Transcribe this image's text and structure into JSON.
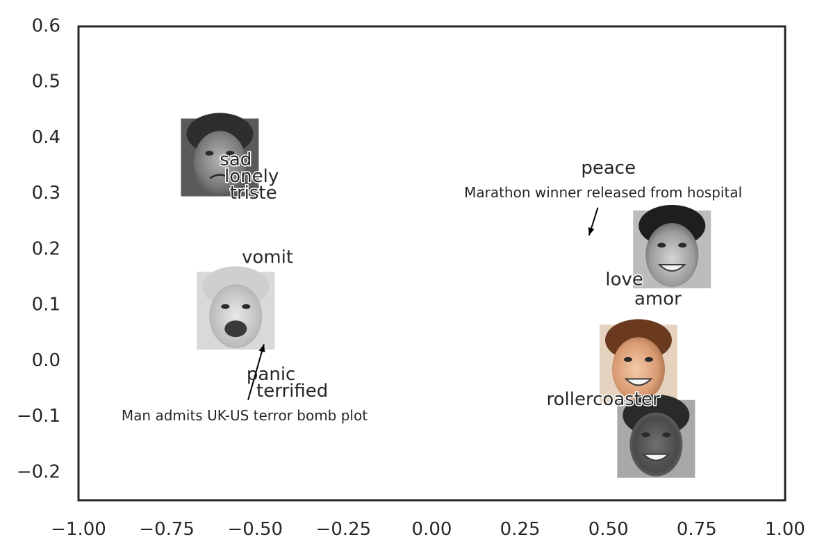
{
  "chart_data": {
    "type": "scatter",
    "title": "",
    "xlabel": "",
    "ylabel": "",
    "xlim": [
      -1.0,
      1.0
    ],
    "ylim": [
      -0.25,
      0.6
    ],
    "x_ticks": [
      -1.0,
      -0.75,
      -0.5,
      -0.25,
      0.0,
      0.25,
      0.5,
      0.75,
      1.0
    ],
    "x_tick_labels": [
      "−1.00",
      "−0.75",
      "−0.50",
      "−0.25",
      "0.00",
      "0.25",
      "0.50",
      "0.75",
      "1.00"
    ],
    "y_ticks": [
      -0.2,
      -0.1,
      0.0,
      0.1,
      0.2,
      0.3,
      0.4,
      0.5,
      0.6
    ],
    "y_tick_labels": [
      "−0.2",
      "−0.1",
      "0.0",
      "0.1",
      "0.2",
      "0.3",
      "0.4",
      "0.5",
      "0.6"
    ],
    "grid": false,
    "image_points": [
      {
        "name": "face-sad-woman-image",
        "label": "sad woman face",
        "x": -0.6,
        "y": 0.365
      },
      {
        "name": "face-crying-baby-image",
        "label": "crying baby face",
        "x": -0.555,
        "y": 0.09
      },
      {
        "name": "face-smiling-man-image",
        "label": "smiling man face",
        "x": 0.68,
        "y": 0.2
      },
      {
        "name": "face-smiling-woman-image",
        "label": "smiling woman face",
        "x": 0.585,
        "y": -0.005
      },
      {
        "name": "face-smiling-boy-image",
        "label": "smiling boy face",
        "x": 0.635,
        "y": -0.14
      }
    ],
    "word_points": [
      {
        "name": "word-sad",
        "text": "sad",
        "x": -0.555,
        "y": 0.36,
        "outlined": true
      },
      {
        "name": "word-lonely",
        "text": "lonely",
        "x": -0.51,
        "y": 0.33,
        "outlined": true
      },
      {
        "name": "word-triste",
        "text": "triste",
        "x": -0.505,
        "y": 0.3,
        "outlined": true
      },
      {
        "name": "word-vomit",
        "text": "vomit",
        "x": -0.465,
        "y": 0.185,
        "outlined": false
      },
      {
        "name": "word-panic",
        "text": "panic",
        "x": -0.455,
        "y": -0.025,
        "outlined": false
      },
      {
        "name": "word-terrified",
        "text": "terrified",
        "x": -0.395,
        "y": -0.055,
        "outlined": false
      },
      {
        "name": "word-peace",
        "text": "peace",
        "x": 0.5,
        "y": 0.345,
        "outlined": false
      },
      {
        "name": "word-love",
        "text": "love",
        "x": 0.545,
        "y": 0.145,
        "outlined": true
      },
      {
        "name": "word-amor",
        "text": "amor",
        "x": 0.64,
        "y": 0.11,
        "outlined": false
      },
      {
        "name": "word-rollercoaster",
        "text": "rollercoaster",
        "x": 0.485,
        "y": -0.07,
        "outlined": true
      }
    ],
    "headline_points": [
      {
        "name": "headline-marathon",
        "text": "Marathon winner released from hospital",
        "x": 0.485,
        "y": 0.3
      },
      {
        "name": "headline-terror",
        "text": "Man admits UK-US terror bomb plot",
        "x": -0.53,
        "y": -0.1
      }
    ],
    "arrows": [
      {
        "name": "arrow-marathon",
        "from": [
          0.47,
          0.275
        ],
        "to": [
          0.445,
          0.225
        ]
      },
      {
        "name": "arrow-terror",
        "from": [
          -0.52,
          -0.07
        ],
        "to": [
          -0.475,
          0.03
        ]
      }
    ]
  }
}
